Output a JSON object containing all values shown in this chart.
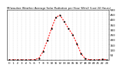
{
  "title": "Milwaukee Weather Average Solar Radiation per Hour W/m2 (Last 24 Hours)",
  "x_values": [
    0,
    1,
    2,
    3,
    4,
    5,
    6,
    7,
    8,
    9,
    10,
    11,
    12,
    13,
    14,
    15,
    16,
    17,
    18,
    19,
    20,
    21,
    22,
    23
  ],
  "y_values": [
    0,
    0,
    0,
    0,
    0,
    0,
    2,
    15,
    80,
    190,
    310,
    420,
    445,
    380,
    310,
    250,
    160,
    60,
    10,
    2,
    0,
    0,
    5,
    2
  ],
  "line_color": "#ff0000",
  "marker_color": "#000000",
  "marker_size": 1.5,
  "ylim": [
    0,
    500
  ],
  "xlim": [
    -0.5,
    23.5
  ],
  "ytick_values": [
    50,
    100,
    150,
    200,
    250,
    300,
    350,
    400,
    450,
    500
  ],
  "ytick_labels": [
    "50",
    "100",
    "150",
    "200",
    "250",
    "300",
    "350",
    "400",
    "450",
    "500"
  ],
  "xticks": [
    0,
    1,
    2,
    3,
    4,
    5,
    6,
    7,
    8,
    9,
    10,
    11,
    12,
    13,
    14,
    15,
    16,
    17,
    18,
    19,
    20,
    21,
    22,
    23
  ],
  "xtick_labels": [
    "0",
    "1",
    "2",
    "3",
    "4",
    "5",
    "6",
    "7",
    "8",
    "9",
    "10",
    "11",
    "12",
    "13",
    "14",
    "15",
    "16",
    "17",
    "18",
    "19",
    "20",
    "21",
    "22",
    "23"
  ],
  "grid_color": "#bbbbbb",
  "background_color": "#ffffff",
  "tick_fontsize": 3.0,
  "title_fontsize": 2.8,
  "line_width": 0.8,
  "dash_seq": [
    2,
    1.5
  ]
}
